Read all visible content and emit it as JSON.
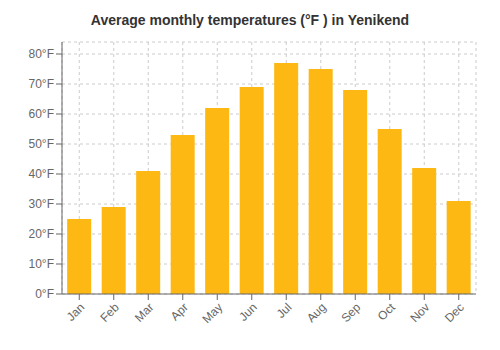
{
  "chart_data": {
    "type": "bar",
    "title": "Average monthly temperatures (°F ) in Yenikend",
    "categories": [
      "Jan",
      "Feb",
      "Mar",
      "Apr",
      "May",
      "Jun",
      "Jul",
      "Aug",
      "Sep",
      "Oct",
      "Nov",
      "Dec"
    ],
    "values": [
      25,
      29,
      41,
      53,
      62,
      69,
      77,
      75,
      68,
      55,
      42,
      31
    ],
    "color": "#FDB813",
    "ylim": [
      0,
      84
    ],
    "yticks": [
      {
        "value": 0,
        "label": "0°F"
      },
      {
        "value": 10,
        "label": "10°F"
      },
      {
        "value": 20,
        "label": "20°F"
      },
      {
        "value": 30,
        "label": "30°F"
      },
      {
        "value": 40,
        "label": "40°F"
      },
      {
        "value": 50,
        "label": "50°F"
      },
      {
        "value": 60,
        "label": "60°F"
      },
      {
        "value": 70,
        "label": "70°F"
      },
      {
        "value": 80,
        "label": "80°F"
      }
    ],
    "grid": true
  }
}
